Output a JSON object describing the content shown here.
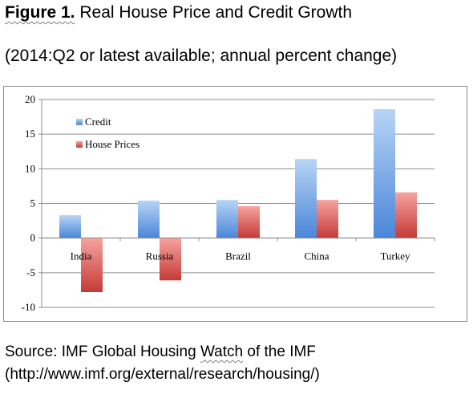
{
  "header": {
    "figure_label": "Figure 1.",
    "title": "Real House Price and Credit Growth",
    "subtitle": "(2014:Q2 or latest available; annual percent change)"
  },
  "footer": {
    "source_prefix": "Source: IMF Global Housing ",
    "source_underlined": "Watch",
    "source_suffix": " of the IMF",
    "url": "(http://www.imf.org/external/research/housing/)"
  },
  "chart_data": {
    "type": "bar",
    "title": "Real House Price and Credit Growth",
    "subtitle": "(2014:Q2 or latest available; annual percent change)",
    "categories": [
      "India",
      "Russia",
      "Brazil",
      "China",
      "Turkey"
    ],
    "series": [
      {
        "name": "Credit",
        "values": [
          3.3,
          5.4,
          5.5,
          11.4,
          18.6
        ]
      },
      {
        "name": "House Prices",
        "values": [
          -7.8,
          -6.1,
          4.6,
          5.5,
          6.6
        ]
      }
    ],
    "yticks": [
      -10,
      -5,
      0,
      5,
      10,
      15,
      20
    ],
    "ylim": [
      -10,
      20
    ],
    "grid": true,
    "legend_position": "top-left",
    "colors": {
      "Credit_light": "#b8d4f5",
      "Credit_dark": "#4a86d9",
      "HousePrices_light": "#f5a3a0",
      "HousePrices_dark": "#c63a37"
    }
  }
}
